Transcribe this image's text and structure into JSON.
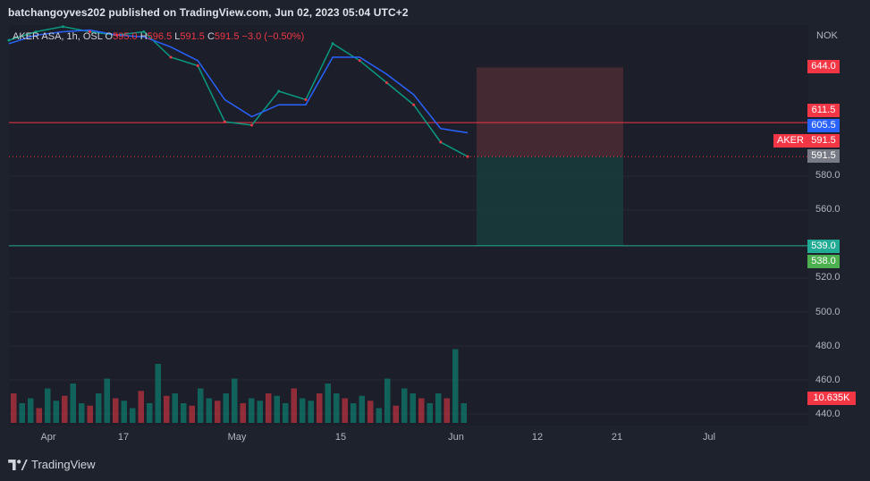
{
  "header": {
    "publish_line": "batchangoyves202 published on TradingView.com, Jun 02, 2023 05:04 UTC+2"
  },
  "legend": {
    "symbol_line": "AKER ASA, 1h, OSL",
    "open_label": "O",
    "open_value": "595.0",
    "high_label": "H",
    "high_value": "596.5",
    "low_label": "L",
    "low_value": "591.5",
    "close_label": "C",
    "close_value": "591.5",
    "change": "−3.0 (−0.50%)"
  },
  "currency": "NOK",
  "symbol_tag": "AKER",
  "price_tags": {
    "target_top": "644.0",
    "stop_line": "611.5",
    "ma_value": "605.5",
    "last_price": "591.5",
    "entry": "591.5",
    "target_low": "539.0",
    "support": "538.0",
    "volume": "10.635K"
  },
  "colors": {
    "background": "#1e222d",
    "up": "#089981",
    "down": "#f23645",
    "ma": "#2962ff",
    "stop_zone": "#4a2a33",
    "target_zone": "#173a3b",
    "resistance_line": "#f23645",
    "support_line": "#22ab94"
  },
  "footer": {
    "brand": "TradingView"
  },
  "chart_data": {
    "type": "line",
    "title": "AKER ASA, 1h, OSL",
    "y_axis_ticks": [
      "440.0",
      "460.0",
      "480.0",
      "500.0",
      "520.0",
      "560.0",
      "580.0"
    ],
    "x_axis_ticks": [
      "Apr",
      "17",
      "May",
      "15",
      "Jun",
      "12",
      "21",
      "Jul"
    ],
    "ylim": [
      436,
      670
    ],
    "series": [
      {
        "x": [
          "Apr 1",
          "Apr 5",
          "Apr 9",
          "Apr 13",
          "Apr 17",
          "Apr 21",
          "Apr 25",
          "Apr 29",
          "May 3",
          "May 5",
          "May 9",
          "May 13",
          "May 17",
          "May 21",
          "May 25",
          "May 29",
          "Jun 1",
          "Jun 2"
        ],
        "values": [
          660,
          665,
          668,
          665,
          663,
          665,
          650,
          645,
          612,
          610,
          630,
          625,
          658,
          648,
          635,
          622,
          600,
          591.5
        ]
      },
      {
        "x": [
          "Apr 1",
          "Apr 5",
          "Apr 9",
          "Apr 13",
          "Apr 17",
          "Apr 21",
          "Apr 25",
          "Apr 29",
          "May 3",
          "May 5",
          "May 9",
          "May 13",
          "May 17",
          "May 21",
          "May 25",
          "May 29",
          "Jun 1",
          "Jun 2"
        ],
        "values": [
          658,
          663,
          665,
          666,
          663,
          662,
          656,
          648,
          625,
          615,
          622,
          622,
          650,
          650,
          640,
          628,
          608,
          605.5
        ]
      }
    ],
    "levels": {
      "resistance": 611.5,
      "entry": 591.5,
      "stop": 644.0,
      "target": 539.0,
      "support": 538.0
    },
    "volume": [
      60,
      40,
      50,
      30,
      70,
      45,
      55,
      80,
      40,
      35,
      60,
      90,
      50,
      45,
      30,
      65,
      40,
      120,
      55,
      60,
      40,
      35,
      70,
      50,
      45,
      60,
      90,
      40,
      50,
      45,
      60,
      55,
      40,
      70,
      50,
      45,
      60,
      80,
      60,
      50,
      40,
      55,
      45,
      30,
      90,
      35,
      70,
      60,
      50,
      40,
      60,
      50,
      150,
      40
    ]
  }
}
